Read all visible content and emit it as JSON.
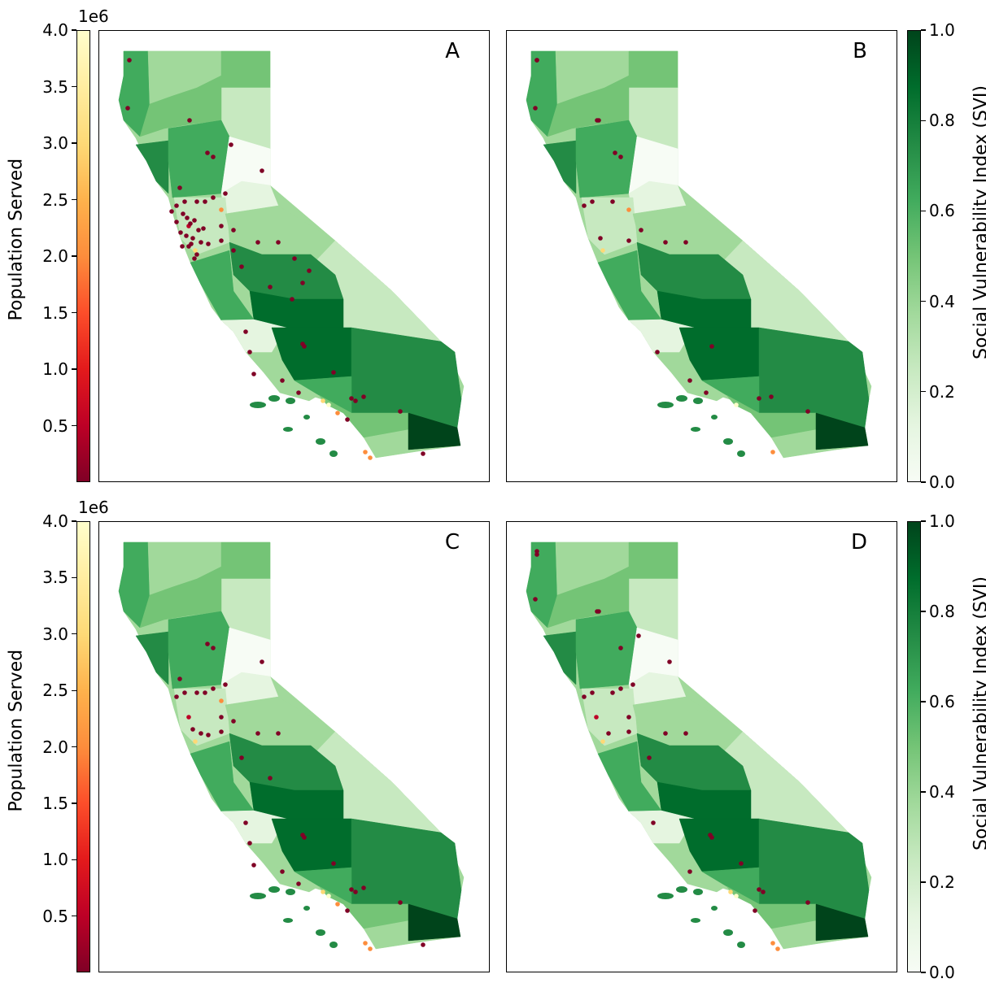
{
  "figure": {
    "panels": [
      {
        "id": "panel-a",
        "letter": "A"
      },
      {
        "id": "panel-b",
        "letter": "B"
      },
      {
        "id": "panel-c",
        "letter": "C"
      },
      {
        "id": "panel-d",
        "letter": "D"
      }
    ],
    "population_colorbar": {
      "label": "Population Served",
      "scale_exponent": "1e6",
      "ticks": [
        "4.0",
        "3.5",
        "3.0",
        "2.5",
        "2.0",
        "1.5",
        "1.0",
        "0.5"
      ],
      "colors": [
        "#800026",
        "#e31a1c",
        "#fd8d3c",
        "#fed976",
        "#ffffcc"
      ]
    },
    "svi_colorbar": {
      "label": "Social Vulnerability Index (SVI)",
      "ticks": [
        "1.0",
        "0.8",
        "0.6",
        "0.4",
        "0.2",
        "0.0"
      ],
      "colors": [
        "#f7fcf5",
        "#c7e9c0",
        "#74c476",
        "#238b45",
        "#00441b"
      ]
    }
  }
}
